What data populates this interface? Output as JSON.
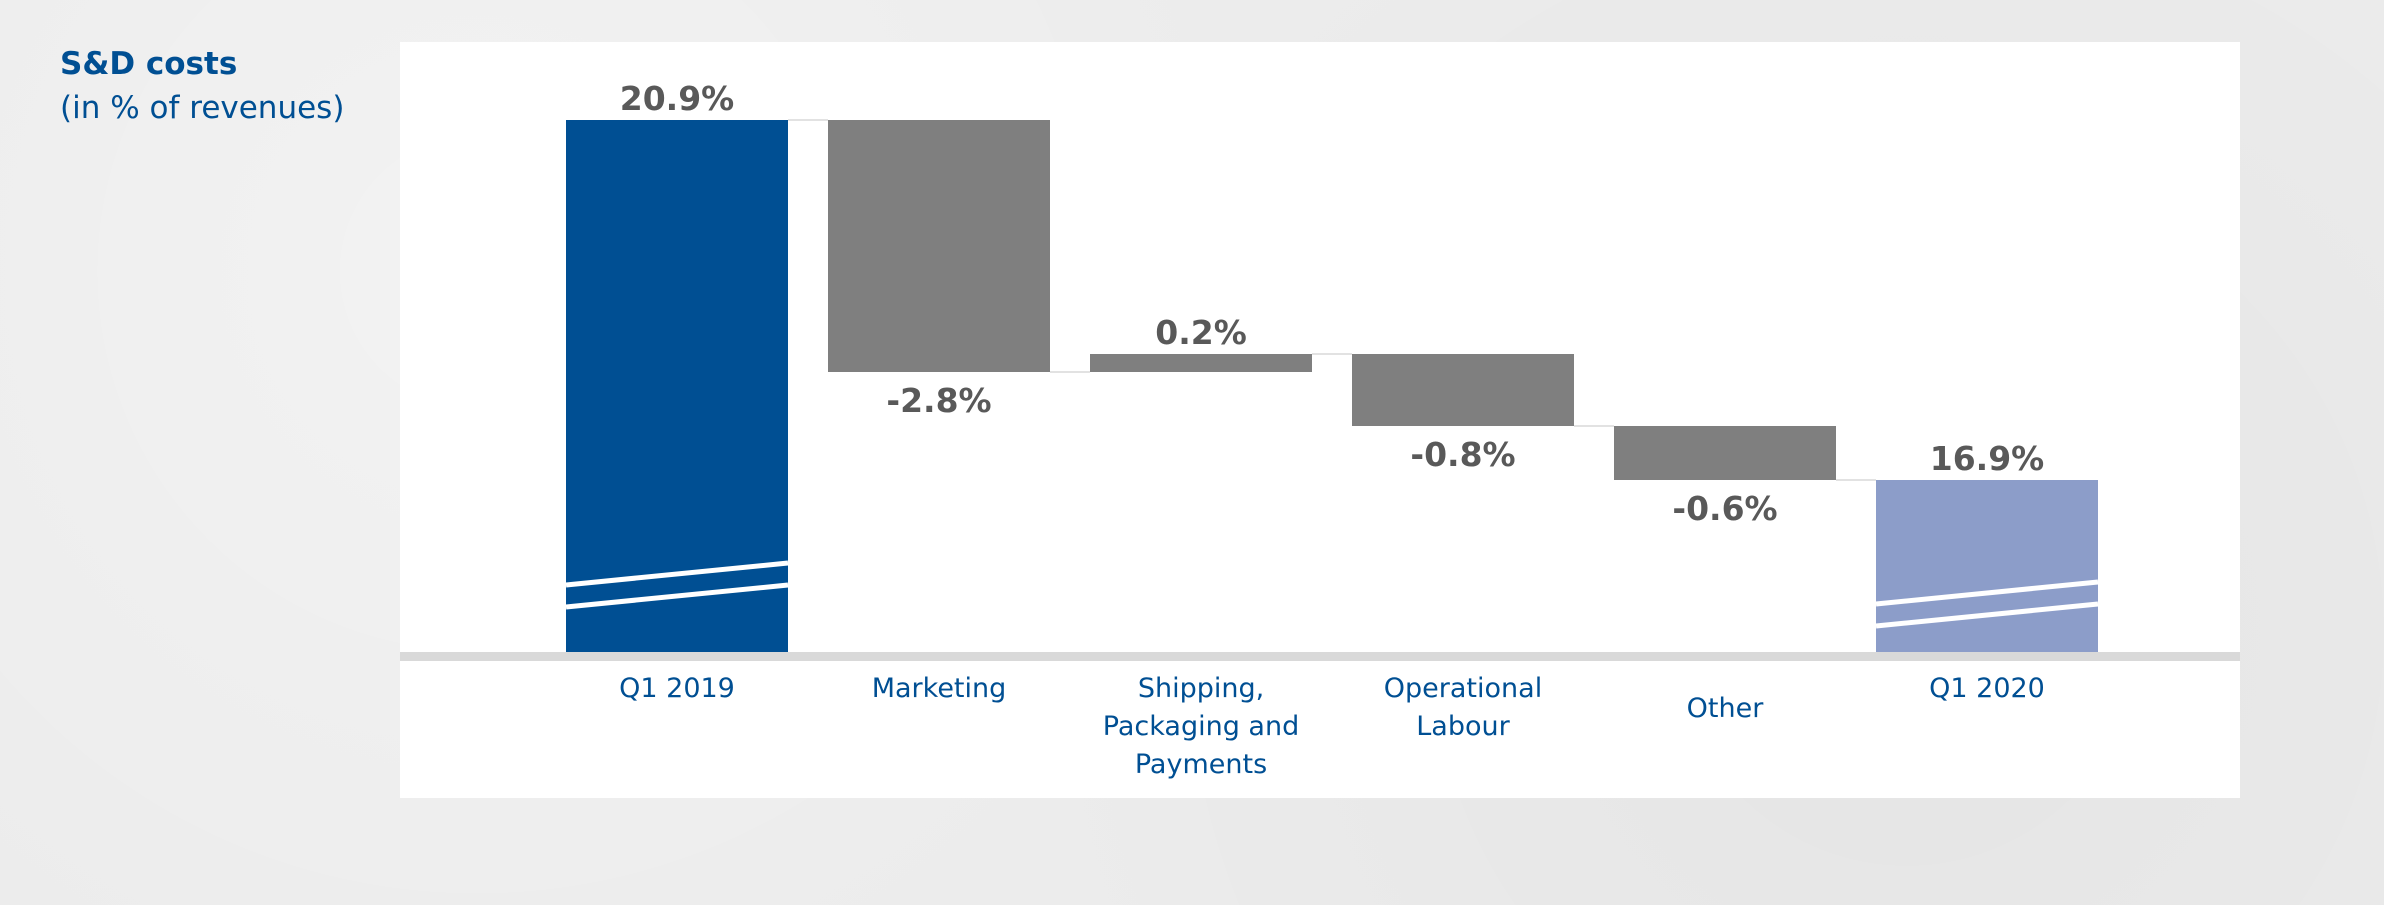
{
  "title": "S&D costs",
  "subtitle": "(in % of revenues)",
  "colors": {
    "start_bar": "#004f93",
    "end_bar": "#8c9dc9",
    "delta_bar": "#7f7f7f",
    "baseline": "#d9d9d9",
    "axis_label": "#004f93",
    "value_label": "#595959"
  },
  "chart_data": {
    "type": "bar",
    "subtype": "waterfall",
    "title": "S&D costs",
    "subtitle": "(in % of revenues)",
    "unit": "%",
    "categories": [
      [
        "Q1 2019"
      ],
      [
        "Marketing"
      ],
      [
        "Shipping,",
        "Packaging and",
        "Payments"
      ],
      [
        "Operational",
        "Labour"
      ],
      [
        "Other"
      ],
      [
        "Q1 2020"
      ]
    ],
    "bars": [
      {
        "category": "Q1 2019",
        "kind": "total",
        "value": 20.9,
        "label": "20.9%"
      },
      {
        "category": "Marketing",
        "kind": "delta",
        "value": -2.8,
        "label": "-2.8%"
      },
      {
        "category": "Shipping, Packaging and Payments",
        "kind": "delta",
        "value": 0.2,
        "label": "0.2%"
      },
      {
        "category": "Operational Labour",
        "kind": "delta",
        "value": -0.8,
        "label": "-0.8%"
      },
      {
        "category": "Other",
        "kind": "delta",
        "value": -0.6,
        "label": "-0.6%"
      },
      {
        "category": "Q1 2020",
        "kind": "total",
        "value": 16.9,
        "label": "16.9%"
      }
    ],
    "axis_break": true,
    "grid": false
  }
}
